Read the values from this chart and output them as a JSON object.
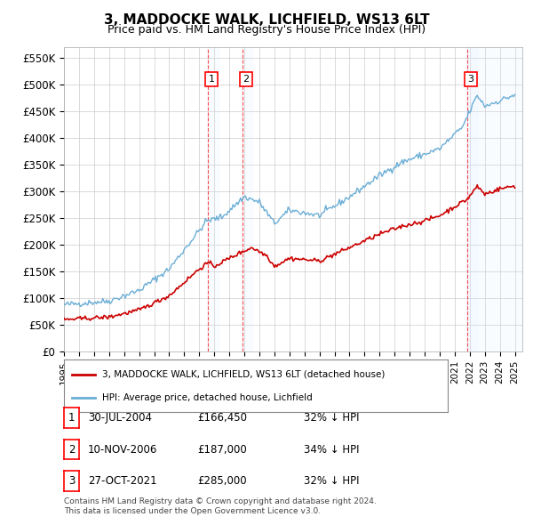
{
  "title": "3, MADDOCKE WALK, LICHFIELD, WS13 6LT",
  "subtitle": "Price paid vs. HM Land Registry's House Price Index (HPI)",
  "ylabel_ticks": [
    "£0",
    "£50K",
    "£100K",
    "£150K",
    "£200K",
    "£250K",
    "£300K",
    "£350K",
    "£400K",
    "£450K",
    "£500K",
    "£550K"
  ],
  "ytick_values": [
    0,
    50000,
    100000,
    150000,
    200000,
    250000,
    300000,
    350000,
    400000,
    450000,
    500000,
    550000
  ],
  "ylim": [
    0,
    570000
  ],
  "xlim_start": 1995.0,
  "xlim_end": 2025.5,
  "hpi_color": "#6baed6",
  "price_color": "#cc0000",
  "sale_color": "#cc0000",
  "purchase_markers": [
    {
      "label": "1",
      "date_num": 2004.57,
      "price": 166450,
      "hpi_val": 251000
    },
    {
      "label": "2",
      "date_num": 2006.86,
      "price": 187000,
      "hpi_val": 278000
    },
    {
      "label": "3",
      "date_num": 2021.82,
      "price": 285000,
      "hpi_val": 420000
    }
  ],
  "legend_property_label": "3, MADDOCKE WALK, LICHFIELD, WS13 6LT (detached house)",
  "legend_hpi_label": "HPI: Average price, detached house, Lichfield",
  "table_rows": [
    {
      "num": "1",
      "date": "30-JUL-2004",
      "price": "£166,450",
      "pct": "32% ↓ HPI"
    },
    {
      "num": "2",
      "date": "10-NOV-2006",
      "price": "£187,000",
      "pct": "34% ↓ HPI"
    },
    {
      "num": "3",
      "date": "27-OCT-2021",
      "price": "£285,000",
      "pct": "32% ↓ HPI"
    }
  ],
  "footnote1": "Contains HM Land Registry data © Crown copyright and database right 2024.",
  "footnote2": "This data is licensed under the Open Government Licence v3.0.",
  "background_color": "#ffffff",
  "grid_color": "#cccccc",
  "shade_color": "#ddeeff"
}
